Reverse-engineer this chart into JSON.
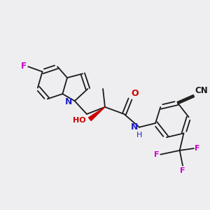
{
  "background_color": "#eeeef0",
  "bond_color": "#1a1a1a",
  "colors": {
    "F": "#cc00cc",
    "N": "#2222cc",
    "O": "#cc0000",
    "C": "#1a1a1a",
    "H": "#008080",
    "wedge": "#cc0000"
  },
  "lw": 1.3,
  "fs": 8.5
}
